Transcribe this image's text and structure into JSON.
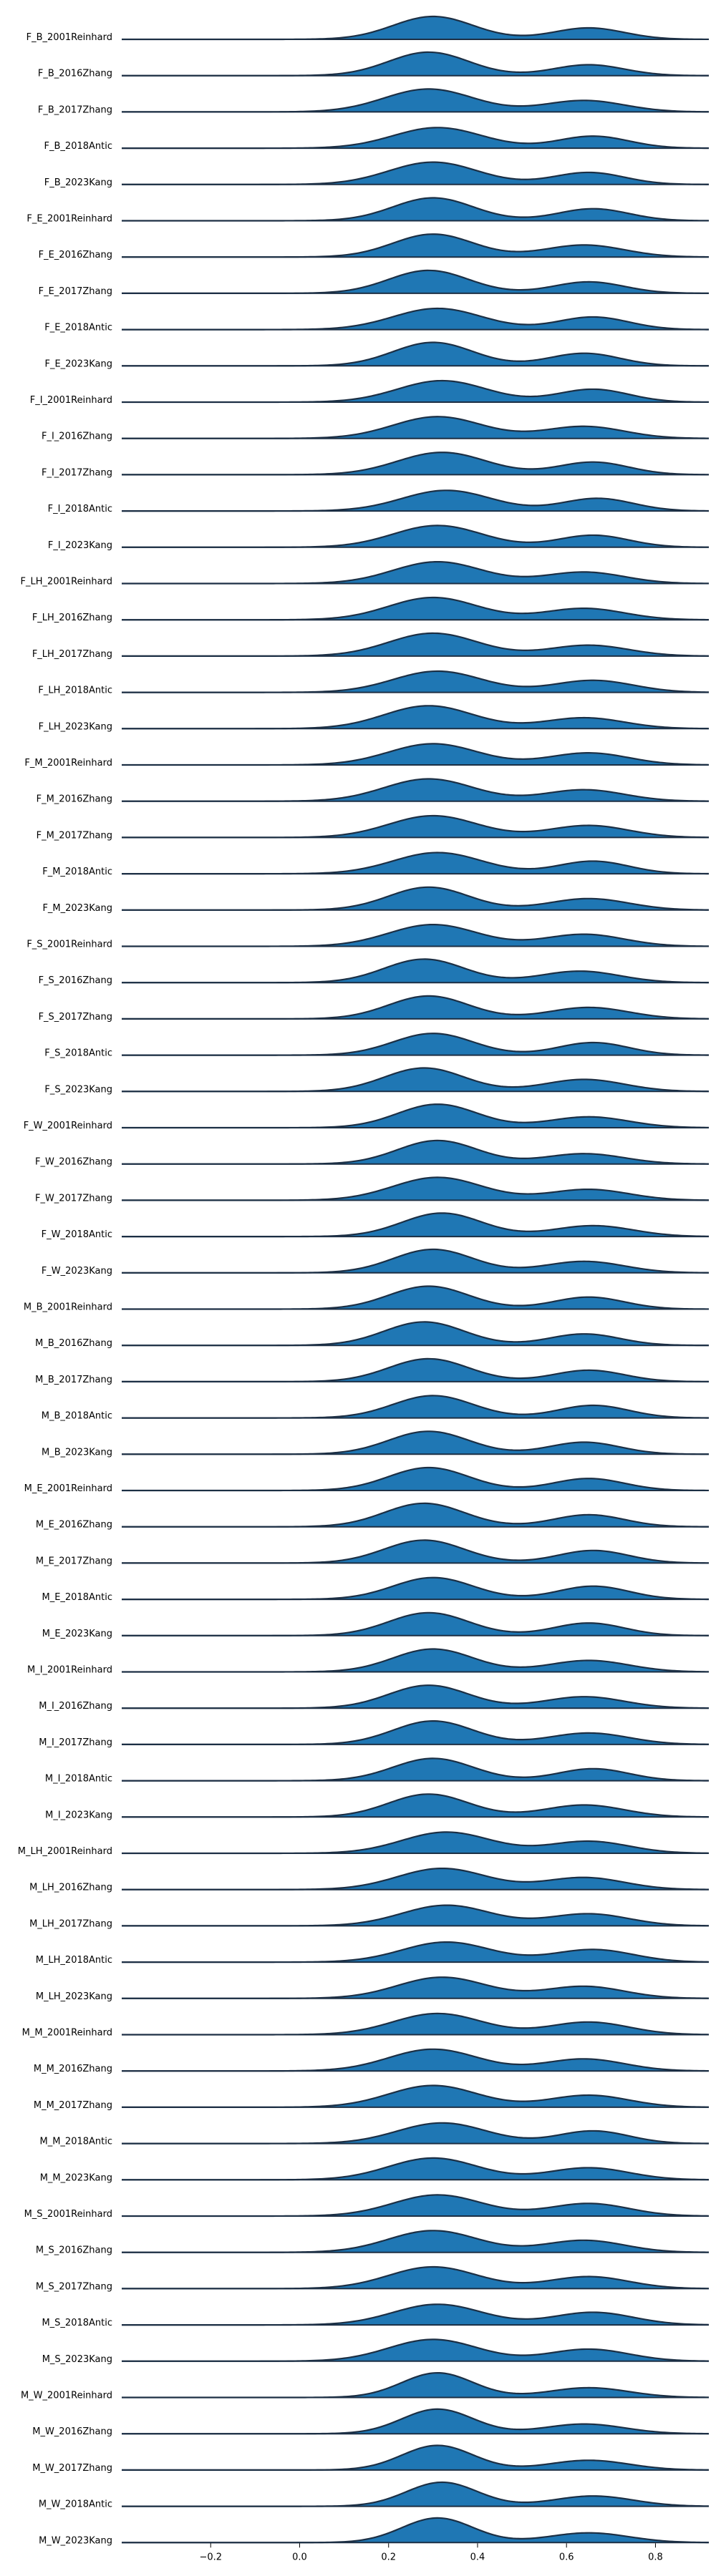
{
  "chart_data": {
    "type": "area",
    "subtype": "ridgeline",
    "title": "",
    "xlabel": "",
    "ylabel": "",
    "xlim": [
      -0.4,
      0.92
    ],
    "xticks": [
      -0.2,
      0.0,
      0.2,
      0.4,
      0.6,
      0.8
    ],
    "xtick_labels": [
      "−0.2",
      "0.0",
      "0.2",
      "0.4",
      "0.6",
      "0.8"
    ],
    "grid": false,
    "legend": "none",
    "fill_color": "#1f77b4",
    "line_color": "#1c2f44",
    "rows": [
      {
        "label": "F_B_2001Reinhard",
        "peaks": [
          [
            0.3,
            0.09,
            0.8
          ],
          [
            0.65,
            0.08,
            0.4
          ]
        ]
      },
      {
        "label": "F_B_2016Zhang",
        "peaks": [
          [
            0.29,
            0.09,
            0.82
          ],
          [
            0.65,
            0.08,
            0.38
          ]
        ]
      },
      {
        "label": "F_B_2017Zhang",
        "peaks": [
          [
            0.29,
            0.1,
            0.8
          ],
          [
            0.64,
            0.09,
            0.4
          ]
        ]
      },
      {
        "label": "F_B_2018Antic",
        "peaks": [
          [
            0.31,
            0.1,
            0.72
          ],
          [
            0.66,
            0.08,
            0.42
          ]
        ]
      },
      {
        "label": "F_B_2023Kang",
        "peaks": [
          [
            0.3,
            0.1,
            0.78
          ],
          [
            0.65,
            0.08,
            0.42
          ]
        ]
      },
      {
        "label": "F_E_2001Reinhard",
        "peaks": [
          [
            0.3,
            0.09,
            0.8
          ],
          [
            0.66,
            0.08,
            0.42
          ]
        ]
      },
      {
        "label": "F_E_2016Zhang",
        "peaks": [
          [
            0.3,
            0.09,
            0.8
          ],
          [
            0.64,
            0.09,
            0.42
          ]
        ]
      },
      {
        "label": "F_E_2017Zhang",
        "peaks": [
          [
            0.29,
            0.09,
            0.8
          ],
          [
            0.65,
            0.08,
            0.4
          ]
        ]
      },
      {
        "label": "F_E_2018Antic",
        "peaks": [
          [
            0.31,
            0.1,
            0.74
          ],
          [
            0.66,
            0.08,
            0.44
          ]
        ]
      },
      {
        "label": "F_E_2023Kang",
        "peaks": [
          [
            0.3,
            0.09,
            0.82
          ],
          [
            0.64,
            0.08,
            0.44
          ]
        ]
      },
      {
        "label": "F_I_2001Reinhard",
        "peaks": [
          [
            0.32,
            0.1,
            0.75
          ],
          [
            0.66,
            0.08,
            0.45
          ]
        ]
      },
      {
        "label": "F_I_2016Zhang",
        "peaks": [
          [
            0.31,
            0.1,
            0.76
          ],
          [
            0.64,
            0.09,
            0.42
          ]
        ]
      },
      {
        "label": "F_I_2017Zhang",
        "peaks": [
          [
            0.32,
            0.1,
            0.78
          ],
          [
            0.66,
            0.08,
            0.44
          ]
        ]
      },
      {
        "label": "F_I_2018Antic",
        "peaks": [
          [
            0.33,
            0.1,
            0.72
          ],
          [
            0.67,
            0.08,
            0.44
          ]
        ]
      },
      {
        "label": "F_I_2023Kang",
        "peaks": [
          [
            0.31,
            0.1,
            0.76
          ],
          [
            0.66,
            0.08,
            0.42
          ]
        ]
      },
      {
        "label": "F_LH_2001Reinhard",
        "peaks": [
          [
            0.31,
            0.1,
            0.76
          ],
          [
            0.64,
            0.09,
            0.4
          ]
        ]
      },
      {
        "label": "F_LH_2016Zhang",
        "peaks": [
          [
            0.3,
            0.1,
            0.78
          ],
          [
            0.64,
            0.09,
            0.4
          ]
        ]
      },
      {
        "label": "F_LH_2017Zhang",
        "peaks": [
          [
            0.3,
            0.1,
            0.8
          ],
          [
            0.65,
            0.09,
            0.38
          ]
        ]
      },
      {
        "label": "F_LH_2018Antic",
        "peaks": [
          [
            0.31,
            0.1,
            0.74
          ],
          [
            0.66,
            0.09,
            0.42
          ]
        ]
      },
      {
        "label": "F_LH_2023Kang",
        "peaks": [
          [
            0.29,
            0.1,
            0.8
          ],
          [
            0.64,
            0.09,
            0.38
          ]
        ]
      },
      {
        "label": "F_M_2001Reinhard",
        "peaks": [
          [
            0.3,
            0.1,
            0.74
          ],
          [
            0.65,
            0.09,
            0.42
          ]
        ]
      },
      {
        "label": "F_M_2016Zhang",
        "peaks": [
          [
            0.29,
            0.1,
            0.78
          ],
          [
            0.64,
            0.09,
            0.4
          ]
        ]
      },
      {
        "label": "F_M_2017Zhang",
        "peaks": [
          [
            0.3,
            0.1,
            0.76
          ],
          [
            0.65,
            0.09,
            0.42
          ]
        ]
      },
      {
        "label": "F_M_2018Antic",
        "peaks": [
          [
            0.31,
            0.1,
            0.74
          ],
          [
            0.66,
            0.08,
            0.44
          ]
        ]
      },
      {
        "label": "F_M_2023Kang",
        "peaks": [
          [
            0.29,
            0.09,
            0.8
          ],
          [
            0.65,
            0.09,
            0.4
          ]
        ]
      },
      {
        "label": "F_S_2001Reinhard",
        "peaks": [
          [
            0.3,
            0.1,
            0.76
          ],
          [
            0.64,
            0.09,
            0.42
          ]
        ]
      },
      {
        "label": "F_S_2016Zhang",
        "peaks": [
          [
            0.28,
            0.09,
            0.82
          ],
          [
            0.63,
            0.09,
            0.4
          ]
        ]
      },
      {
        "label": "F_S_2017Zhang",
        "peaks": [
          [
            0.29,
            0.09,
            0.8
          ],
          [
            0.65,
            0.09,
            0.4
          ]
        ]
      },
      {
        "label": "F_S_2018Antic",
        "peaks": [
          [
            0.3,
            0.09,
            0.76
          ],
          [
            0.66,
            0.08,
            0.44
          ]
        ]
      },
      {
        "label": "F_S_2023Kang",
        "peaks": [
          [
            0.28,
            0.09,
            0.82
          ],
          [
            0.64,
            0.09,
            0.42
          ]
        ]
      },
      {
        "label": "F_W_2001Reinhard",
        "peaks": [
          [
            0.31,
            0.09,
            0.82
          ],
          [
            0.65,
            0.09,
            0.38
          ]
        ]
      },
      {
        "label": "F_W_2016Zhang",
        "peaks": [
          [
            0.31,
            0.09,
            0.82
          ],
          [
            0.64,
            0.09,
            0.36
          ]
        ]
      },
      {
        "label": "F_W_2017Zhang",
        "peaks": [
          [
            0.31,
            0.1,
            0.8
          ],
          [
            0.65,
            0.09,
            0.38
          ]
        ]
      },
      {
        "label": "F_W_2018Antic",
        "peaks": [
          [
            0.32,
            0.09,
            0.82
          ],
          [
            0.66,
            0.09,
            0.38
          ]
        ]
      },
      {
        "label": "F_W_2023Kang",
        "peaks": [
          [
            0.3,
            0.09,
            0.82
          ],
          [
            0.64,
            0.09,
            0.4
          ]
        ]
      },
      {
        "label": "M_B_2001Reinhard",
        "peaks": [
          [
            0.29,
            0.09,
            0.8
          ],
          [
            0.65,
            0.08,
            0.42
          ]
        ]
      },
      {
        "label": "M_B_2016Zhang",
        "peaks": [
          [
            0.28,
            0.09,
            0.82
          ],
          [
            0.64,
            0.08,
            0.4
          ]
        ]
      },
      {
        "label": "M_B_2017Zhang",
        "peaks": [
          [
            0.29,
            0.09,
            0.8
          ],
          [
            0.65,
            0.08,
            0.4
          ]
        ]
      },
      {
        "label": "M_B_2018Antic",
        "peaks": [
          [
            0.3,
            0.09,
            0.78
          ],
          [
            0.66,
            0.08,
            0.44
          ]
        ]
      },
      {
        "label": "M_B_2023Kang",
        "peaks": [
          [
            0.29,
            0.09,
            0.8
          ],
          [
            0.64,
            0.08,
            0.42
          ]
        ]
      },
      {
        "label": "M_E_2001Reinhard",
        "peaks": [
          [
            0.29,
            0.09,
            0.8
          ],
          [
            0.65,
            0.08,
            0.42
          ]
        ]
      },
      {
        "label": "M_E_2016Zhang",
        "peaks": [
          [
            0.28,
            0.09,
            0.82
          ],
          [
            0.65,
            0.08,
            0.42
          ]
        ]
      },
      {
        "label": "M_E_2017Zhang",
        "peaks": [
          [
            0.28,
            0.09,
            0.8
          ],
          [
            0.66,
            0.08,
            0.44
          ]
        ]
      },
      {
        "label": "M_E_2018Antic",
        "peaks": [
          [
            0.3,
            0.09,
            0.76
          ],
          [
            0.66,
            0.08,
            0.46
          ]
        ]
      },
      {
        "label": "M_E_2023Kang",
        "peaks": [
          [
            0.29,
            0.09,
            0.8
          ],
          [
            0.65,
            0.08,
            0.44
          ]
        ]
      },
      {
        "label": "M_I_2001Reinhard",
        "peaks": [
          [
            0.3,
            0.09,
            0.8
          ],
          [
            0.65,
            0.09,
            0.4
          ]
        ]
      },
      {
        "label": "M_I_2016Zhang",
        "peaks": [
          [
            0.29,
            0.09,
            0.8
          ],
          [
            0.64,
            0.09,
            0.4
          ]
        ]
      },
      {
        "label": "M_I_2017Zhang",
        "peaks": [
          [
            0.3,
            0.09,
            0.82
          ],
          [
            0.65,
            0.09,
            0.4
          ]
        ]
      },
      {
        "label": "M_I_2018Antic",
        "peaks": [
          [
            0.3,
            0.09,
            0.78
          ],
          [
            0.66,
            0.08,
            0.42
          ]
        ]
      },
      {
        "label": "M_I_2023Kang",
        "peaks": [
          [
            0.29,
            0.09,
            0.8
          ],
          [
            0.64,
            0.09,
            0.42
          ]
        ]
      },
      {
        "label": "M_LH_2001Reinhard",
        "peaks": [
          [
            0.33,
            0.1,
            0.74
          ],
          [
            0.65,
            0.09,
            0.42
          ]
        ]
      },
      {
        "label": "M_LH_2016Zhang",
        "peaks": [
          [
            0.32,
            0.1,
            0.74
          ],
          [
            0.64,
            0.09,
            0.42
          ]
        ]
      },
      {
        "label": "M_LH_2017Zhang",
        "peaks": [
          [
            0.33,
            0.1,
            0.72
          ],
          [
            0.65,
            0.09,
            0.42
          ]
        ]
      },
      {
        "label": "M_LH_2018Antic",
        "peaks": [
          [
            0.33,
            0.1,
            0.7
          ],
          [
            0.66,
            0.09,
            0.44
          ]
        ]
      },
      {
        "label": "M_LH_2023Kang",
        "peaks": [
          [
            0.32,
            0.1,
            0.74
          ],
          [
            0.64,
            0.09,
            0.42
          ]
        ]
      },
      {
        "label": "M_M_2001Reinhard",
        "peaks": [
          [
            0.31,
            0.1,
            0.74
          ],
          [
            0.65,
            0.09,
            0.44
          ]
        ]
      },
      {
        "label": "M_M_2016Zhang",
        "peaks": [
          [
            0.3,
            0.1,
            0.76
          ],
          [
            0.64,
            0.09,
            0.42
          ]
        ]
      },
      {
        "label": "M_M_2017Zhang",
        "peaks": [
          [
            0.3,
            0.1,
            0.76
          ],
          [
            0.65,
            0.09,
            0.42
          ]
        ]
      },
      {
        "label": "M_M_2018Antic",
        "peaks": [
          [
            0.32,
            0.1,
            0.72
          ],
          [
            0.66,
            0.08,
            0.44
          ]
        ]
      },
      {
        "label": "M_M_2023Kang",
        "peaks": [
          [
            0.3,
            0.1,
            0.76
          ],
          [
            0.65,
            0.09,
            0.42
          ]
        ]
      },
      {
        "label": "M_S_2001Reinhard",
        "peaks": [
          [
            0.31,
            0.1,
            0.74
          ],
          [
            0.65,
            0.09,
            0.44
          ]
        ]
      },
      {
        "label": "M_S_2016Zhang",
        "peaks": [
          [
            0.3,
            0.1,
            0.76
          ],
          [
            0.64,
            0.09,
            0.42
          ]
        ]
      },
      {
        "label": "M_S_2017Zhang",
        "peaks": [
          [
            0.3,
            0.1,
            0.76
          ],
          [
            0.65,
            0.09,
            0.42
          ]
        ]
      },
      {
        "label": "M_S_2018Antic",
        "peaks": [
          [
            0.31,
            0.1,
            0.72
          ],
          [
            0.66,
            0.09,
            0.44
          ]
        ]
      },
      {
        "label": "M_S_2023Kang",
        "peaks": [
          [
            0.3,
            0.1,
            0.76
          ],
          [
            0.65,
            0.09,
            0.42
          ]
        ]
      },
      {
        "label": "M_W_2001Reinhard",
        "peaks": [
          [
            0.31,
            0.08,
            0.86
          ],
          [
            0.65,
            0.09,
            0.34
          ]
        ]
      },
      {
        "label": "M_W_2016Zhang",
        "peaks": [
          [
            0.31,
            0.08,
            0.86
          ],
          [
            0.64,
            0.09,
            0.34
          ]
        ]
      },
      {
        "label": "M_W_2017Zhang",
        "peaks": [
          [
            0.31,
            0.08,
            0.86
          ],
          [
            0.65,
            0.09,
            0.34
          ]
        ]
      },
      {
        "label": "M_W_2018Antic",
        "peaks": [
          [
            0.32,
            0.08,
            0.84
          ],
          [
            0.66,
            0.09,
            0.36
          ]
        ]
      },
      {
        "label": "M_W_2023Kang",
        "peaks": [
          [
            0.31,
            0.08,
            0.86
          ],
          [
            0.65,
            0.09,
            0.34
          ]
        ]
      }
    ]
  }
}
